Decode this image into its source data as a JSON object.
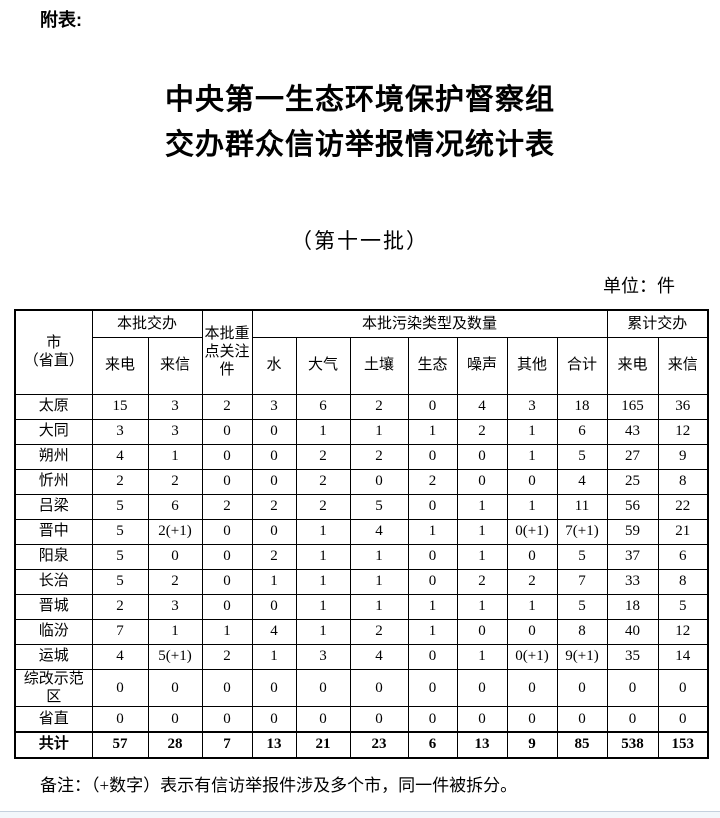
{
  "colors": {
    "text": "#000000",
    "page_bg": "#ffffff",
    "bottom_edge_line": "#c5d0dd"
  },
  "page": {
    "attachment_label": "附表:",
    "title_line1": "中央第一生态环境保护督察组",
    "title_line2": "交办群众信访举报情况统计表",
    "subtitle": "（第十一批）",
    "unit_label": "单位：件",
    "note": "备注：（+数字）表示有信访举报件涉及多个市，同一件被拆分。"
  },
  "table": {
    "headers": {
      "city_line1": "市",
      "city_line2": "（省直）",
      "batch_assigned": "本批交办",
      "calls": "来电",
      "letters": "来信",
      "key_attention": "本批重点关注件",
      "pollution_group": "本批污染类型及数量",
      "pollution_cols": [
        "水",
        "大气",
        "土壤",
        "生态",
        "噪声",
        "其他",
        "合计"
      ],
      "cumulative": "累计交办",
      "cum_calls": "来电",
      "cum_letters": "来信"
    },
    "rows": [
      [
        "太原",
        "15",
        "3",
        "2",
        "3",
        "6",
        "2",
        "0",
        "4",
        "3",
        "18",
        "165",
        "36"
      ],
      [
        "大同",
        "3",
        "3",
        "0",
        "0",
        "1",
        "1",
        "1",
        "2",
        "1",
        "6",
        "43",
        "12"
      ],
      [
        "朔州",
        "4",
        "1",
        "0",
        "0",
        "2",
        "2",
        "0",
        "0",
        "1",
        "5",
        "27",
        "9"
      ],
      [
        "忻州",
        "2",
        "2",
        "0",
        "0",
        "2",
        "0",
        "2",
        "0",
        "0",
        "4",
        "25",
        "8"
      ],
      [
        "吕梁",
        "5",
        "6",
        "2",
        "2",
        "2",
        "5",
        "0",
        "1",
        "1",
        "11",
        "56",
        "22"
      ],
      [
        "晋中",
        "5",
        "2(+1)",
        "0",
        "0",
        "1",
        "4",
        "1",
        "1",
        "0(+1)",
        "7(+1)",
        "59",
        "21"
      ],
      [
        "阳泉",
        "5",
        "0",
        "0",
        "2",
        "1",
        "1",
        "0",
        "1",
        "0",
        "5",
        "37",
        "6"
      ],
      [
        "长治",
        "5",
        "2",
        "0",
        "1",
        "1",
        "1",
        "0",
        "2",
        "2",
        "7",
        "33",
        "8"
      ],
      [
        "晋城",
        "2",
        "3",
        "0",
        "0",
        "1",
        "1",
        "1",
        "1",
        "1",
        "5",
        "18",
        "5"
      ],
      [
        "临汾",
        "7",
        "1",
        "1",
        "4",
        "1",
        "2",
        "1",
        "0",
        "0",
        "8",
        "40",
        "12"
      ],
      [
        "运城",
        "4",
        "5(+1)",
        "2",
        "1",
        "3",
        "4",
        "0",
        "1",
        "0(+1)",
        "9(+1)",
        "35",
        "14"
      ],
      [
        "综改示范区",
        "0",
        "0",
        "0",
        "0",
        "0",
        "0",
        "0",
        "0",
        "0",
        "0",
        "0",
        "0"
      ],
      [
        "省直",
        "0",
        "0",
        "0",
        "0",
        "0",
        "0",
        "0",
        "0",
        "0",
        "0",
        "0",
        "0"
      ]
    ],
    "total_row": [
      "共计",
      "57",
      "28",
      "7",
      "13",
      "21",
      "23",
      "6",
      "13",
      "9",
      "85",
      "538",
      "153"
    ]
  }
}
